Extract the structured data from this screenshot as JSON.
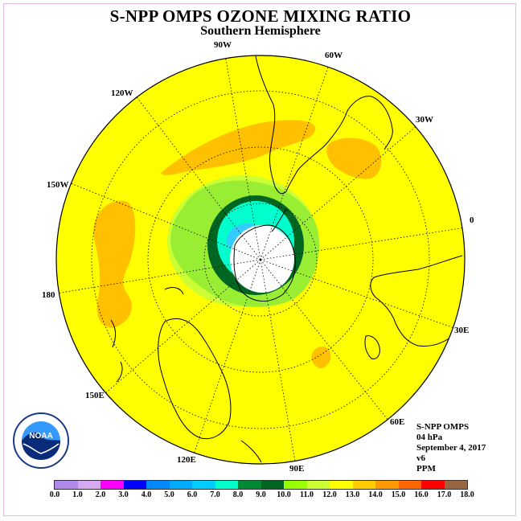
{
  "title": "S-NPP OMPS OZONE MIXING RATIO",
  "subtitle": "Southern Hemisphere",
  "longitude_labels": [
    "90W",
    "60W",
    "30W",
    "0",
    "30E",
    "60E",
    "90E",
    "120E",
    "150E",
    "180",
    "150W",
    "120W"
  ],
  "info": {
    "instrument": "S-NPP OMPS",
    "pressure": "04 hPa",
    "date": "September 4, 2017",
    "version": "v6",
    "units": "PPM"
  },
  "logo_text": "NOAA",
  "legend": {
    "ticks": [
      "0.0",
      "1.0",
      "2.0",
      "3.0",
      "4.0",
      "5.0",
      "6.0",
      "7.0",
      "8.0",
      "9.0",
      "10.0",
      "11.0",
      "12.0",
      "13.0",
      "14.0",
      "15.0",
      "16.0",
      "17.0",
      "18.0"
    ],
    "colors": [
      "#b088e8",
      "#d8a8f0",
      "#ff00ff",
      "#0000ff",
      "#0088ff",
      "#00aaff",
      "#00ccff",
      "#00ffcc",
      "#008833",
      "#006622",
      "#99ff00",
      "#ccff33",
      "#ffff00",
      "#ffcc00",
      "#ff9900",
      "#ff6600",
      "#ff0000",
      "#996644"
    ]
  },
  "colors": {
    "background_field": "#ffff00",
    "orange_patches": "#ffc000",
    "green_light": "#ccff33",
    "green_mid": "#99ee33",
    "green_dark": "#006622",
    "teal": "#00ffcc",
    "cyan_blue": "#33ccff",
    "polar_hole": "#ffffff"
  }
}
